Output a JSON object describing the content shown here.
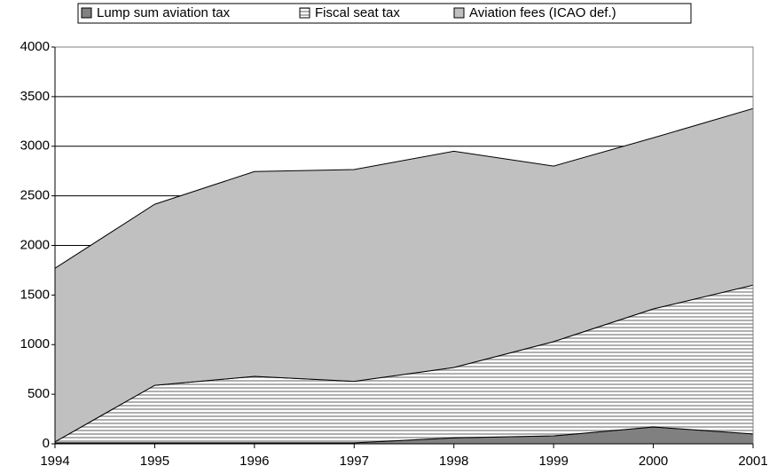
{
  "chart_data": {
    "type": "stacked-area",
    "x": [
      1994,
      1995,
      1996,
      1997,
      1998,
      1999,
      2000,
      2001
    ],
    "xlim": [
      1994,
      2001
    ],
    "xticks": [
      1994,
      1995,
      1996,
      1997,
      1998,
      1999,
      2000,
      2001
    ],
    "ylim": [
      0,
      4000
    ],
    "yticks": [
      0,
      500,
      1000,
      1500,
      2000,
      2500,
      3000,
      3500,
      4000
    ],
    "grid": true,
    "legend_position": "top",
    "series": [
      {
        "name": "Lump sum aviation tax",
        "color": "#808080",
        "values": [
          10,
          10,
          10,
          10,
          60,
          80,
          170,
          100
        ]
      },
      {
        "name": "Fiscal seat tax",
        "color": "#b0b0b0",
        "values": [
          10,
          580,
          670,
          620,
          710,
          950,
          1190,
          1500
        ]
      },
      {
        "name": "Aviation fees (ICAO def.)",
        "color": "#c0c0c0",
        "values": [
          1750,
          1825,
          2065,
          2135,
          2180,
          1770,
          1725,
          1780
        ]
      }
    ]
  }
}
